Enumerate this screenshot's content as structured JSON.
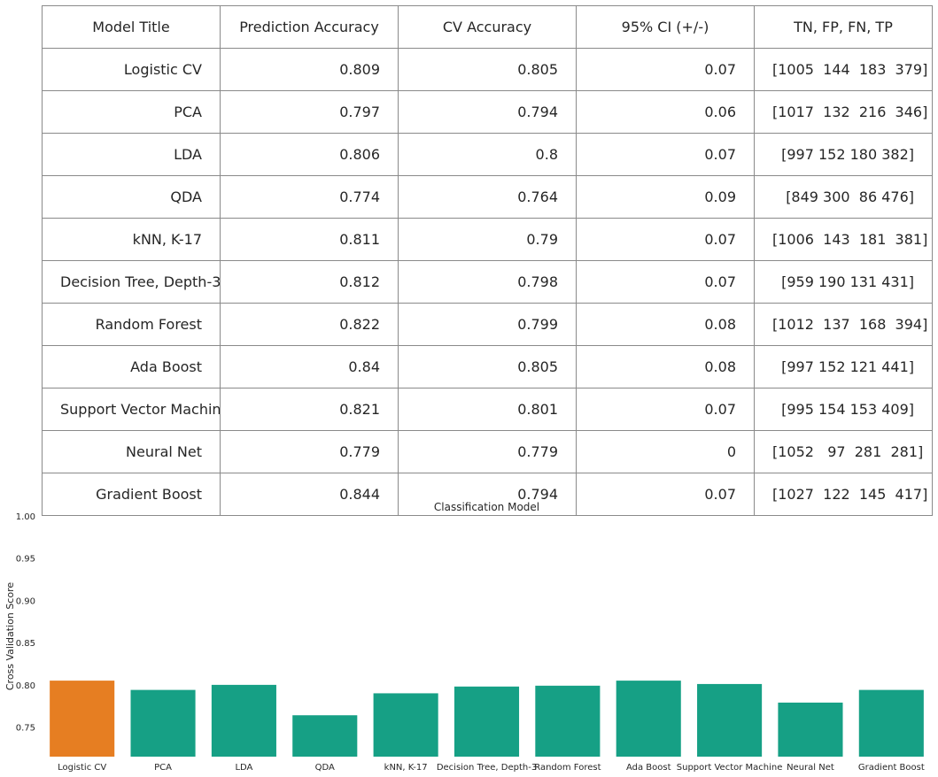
{
  "table": {
    "headers": [
      "Model Title",
      "Prediction Accuracy",
      "CV Accuracy",
      "95% CI (+/-)",
      "TN, FP, FN, TP"
    ],
    "rows": [
      [
        "Logistic CV",
        "0.809",
        "0.805",
        "0.07",
        "[1005  144  183  379]"
      ],
      [
        "PCA",
        "0.797",
        "0.794",
        "0.06",
        "[1017  132  216  346]"
      ],
      [
        "LDA",
        "0.806",
        "0.8",
        "0.07",
        "[997 152 180 382]"
      ],
      [
        "QDA",
        "0.774",
        "0.764",
        "0.09",
        "[849 300  86 476]"
      ],
      [
        "kNN, K-17",
        "0.811",
        "0.79",
        "0.07",
        "[1006  143  181  381]"
      ],
      [
        "Decision Tree, Depth-3",
        "0.812",
        "0.798",
        "0.07",
        "[959 190 131 431]"
      ],
      [
        "Random Forest",
        "0.822",
        "0.799",
        "0.08",
        "[1012  137  168  394]"
      ],
      [
        "Ada Boost",
        "0.84",
        "0.805",
        "0.08",
        "[997 152 121 441]"
      ],
      [
        "Support Vector Machine",
        "0.821",
        "0.801",
        "0.07",
        "[995 154 153 409]"
      ],
      [
        "Neural Net",
        "0.779",
        "0.779",
        "0",
        "[1052   97  281  281]"
      ],
      [
        "Gradient Boost",
        "0.844",
        "0.794",
        "0.07",
        "[1027  122  145  417]"
      ]
    ]
  },
  "chart_data": {
    "type": "bar",
    "title": "Classification Model",
    "xlabel": "",
    "ylabel": "Cross Validation Score",
    "categories": [
      "Logistic CV",
      "PCA",
      "LDA",
      "QDA",
      "kNN, K-17",
      "Decision Tree, Depth-3",
      "Random Forest",
      "Ada Boost",
      "Support Vector Machine",
      "Neural Net",
      "Gradient Boost"
    ],
    "values": [
      0.805,
      0.794,
      0.8,
      0.764,
      0.79,
      0.798,
      0.799,
      0.805,
      0.801,
      0.779,
      0.794
    ],
    "ylim": [
      0.715,
      1.0
    ],
    "yticks": [
      0.75,
      0.8,
      0.85,
      0.9,
      0.95,
      1.0
    ],
    "ytick_labels": [
      "0.75",
      "0.80",
      "0.85",
      "0.90",
      "0.95",
      "1.00"
    ],
    "grid": false,
    "colors": {
      "highlight": "#e67e22",
      "default": "#16a085"
    },
    "highlight_index": 0
  }
}
